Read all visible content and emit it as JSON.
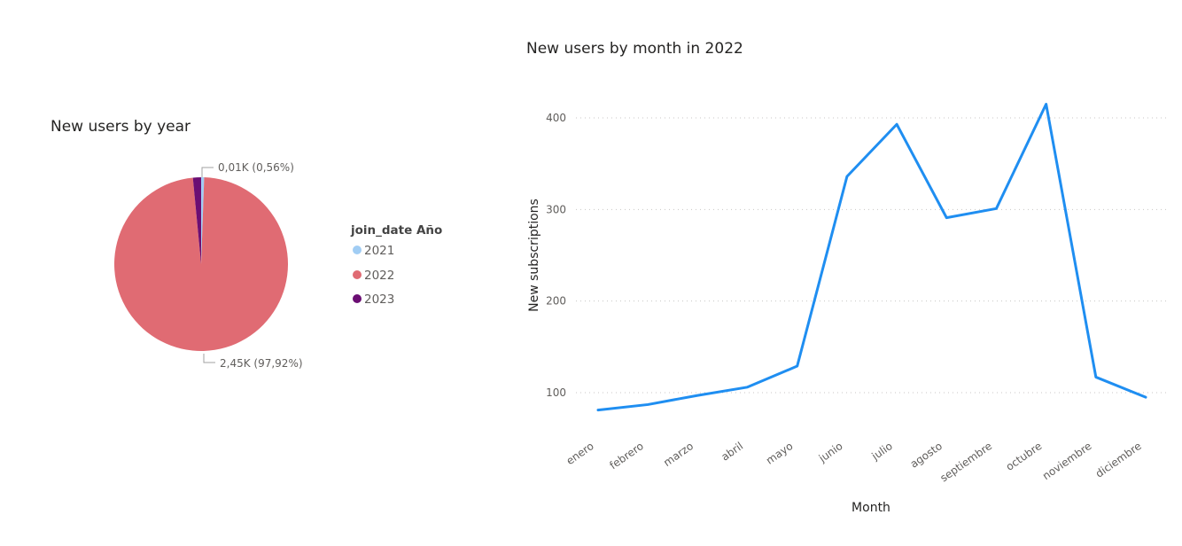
{
  "colors": {
    "c2021": "#a1cdf4",
    "c2022": "#e06b73",
    "c2023": "#6b0e73",
    "line": "#1f8ef1"
  },
  "chart_data": [
    {
      "type": "pie",
      "title": "New users by year",
      "legend_title": "join_date Año",
      "legend_placement": "right",
      "slices": [
        {
          "name": "2021",
          "value": 0.56
        },
        {
          "name": "2022",
          "value": 97.92
        },
        {
          "name": "2023",
          "value": 1.52
        }
      ],
      "data_labels": [
        {
          "text": "0,01K (0,56%)",
          "slice": "2021"
        },
        {
          "text": "2,45K (97,92%)",
          "slice": "2022"
        }
      ]
    },
    {
      "type": "line",
      "title": "New users by month in 2022",
      "xlabel": "Month",
      "ylabel": "New subscriptions",
      "categories": [
        "enero",
        "febrero",
        "marzo",
        "abril",
        "mayo",
        "junio",
        "julio",
        "agosto",
        "septiembre",
        "octubre",
        "noviembre",
        "diciembre"
      ],
      "series": [
        {
          "values": [
            81,
            87,
            97,
            106,
            129,
            336,
            393,
            291,
            301,
            415,
            117,
            95
          ]
        }
      ],
      "ylim": [
        60,
        440
      ],
      "yticks": [
        100,
        200,
        300,
        400
      ],
      "grid": true
    }
  ]
}
